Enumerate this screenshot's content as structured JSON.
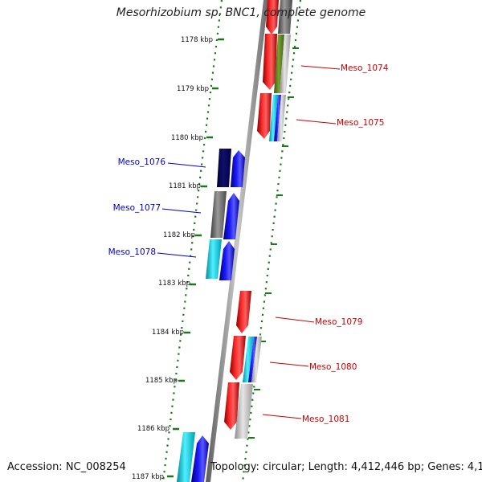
{
  "title": "Mesorhizobium sp. BNC1, complete genome",
  "accession_text": "Accession: NC_008254",
  "topology_text": "Topology: circular; Length: 4,412,446 bp; Genes: 4,131",
  "ticks": [
    "1178 kbp",
    "1179 kbp",
    "1180 kbp",
    "1181 kbp",
    "1182 kbp",
    "1183 kbp",
    "1184 kbp",
    "1185 kbp",
    "1186 kbp",
    "1187 kbp"
  ],
  "genes": [
    {
      "label": "Meso_1074",
      "color": "#cc0000"
    },
    {
      "label": "Meso_1075",
      "color": "#cc0000"
    },
    {
      "label": "Meso_1076",
      "color": "#0000cc"
    },
    {
      "label": "Meso_1077",
      "color": "#0000cc"
    },
    {
      "label": "Meso_1078",
      "color": "#0000cc"
    },
    {
      "label": "Meso_1079",
      "color": "#cc0000"
    },
    {
      "label": "Meso_1080",
      "color": "#cc0000"
    },
    {
      "label": "Meso_1081",
      "color": "#cc0000"
    }
  ],
  "colors": {
    "forward_strand": "#ff0000",
    "reverse_strand": "#0000ff",
    "tick_marks": "#1a7a1a",
    "backbone": "#8a8a8a"
  }
}
